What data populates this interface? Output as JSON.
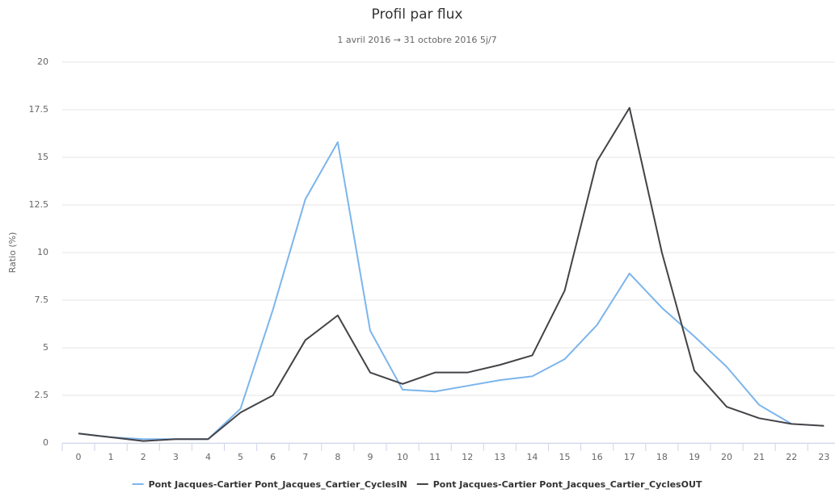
{
  "chart_data": {
    "type": "line",
    "title": "Profil par flux",
    "subtitle": "1 avril 2016 → 31 octobre 2016 5j/7",
    "y_label": "Ratio (%)",
    "categories": [
      "0",
      "1",
      "2",
      "3",
      "4",
      "5",
      "6",
      "7",
      "8",
      "9",
      "10",
      "11",
      "12",
      "13",
      "14",
      "15",
      "16",
      "17",
      "18",
      "19",
      "20",
      "21",
      "22",
      "23"
    ],
    "series": [
      {
        "name": "Pont Jacques-Cartier Pont_Jacques_Cartier_CyclesIN",
        "color": "#7cb5ec",
        "values": [
          0.5,
          0.3,
          0.2,
          0.2,
          0.2,
          1.8,
          7.0,
          12.8,
          15.8,
          5.9,
          2.8,
          2.7,
          3.0,
          3.3,
          3.5,
          4.4,
          6.2,
          8.9,
          7.1,
          5.6,
          4.0,
          2.0,
          1.0,
          null
        ]
      },
      {
        "name": "Pont Jacques-Cartier Pont_Jacques_Cartier_CyclesOUT",
        "color": "#434348",
        "values": [
          0.5,
          0.3,
          0.1,
          0.2,
          0.2,
          1.6,
          2.5,
          5.4,
          6.7,
          3.7,
          3.1,
          3.7,
          3.7,
          4.1,
          4.6,
          8.0,
          14.8,
          17.6,
          10.0,
          3.8,
          1.9,
          1.3,
          1.0,
          0.9
        ]
      }
    ],
    "ylim": [
      0,
      20
    ],
    "yticks": [
      0,
      2.5,
      5,
      7.5,
      10,
      12.5,
      15,
      17.5,
      20
    ],
    "grid": true,
    "legend": "bottom"
  }
}
